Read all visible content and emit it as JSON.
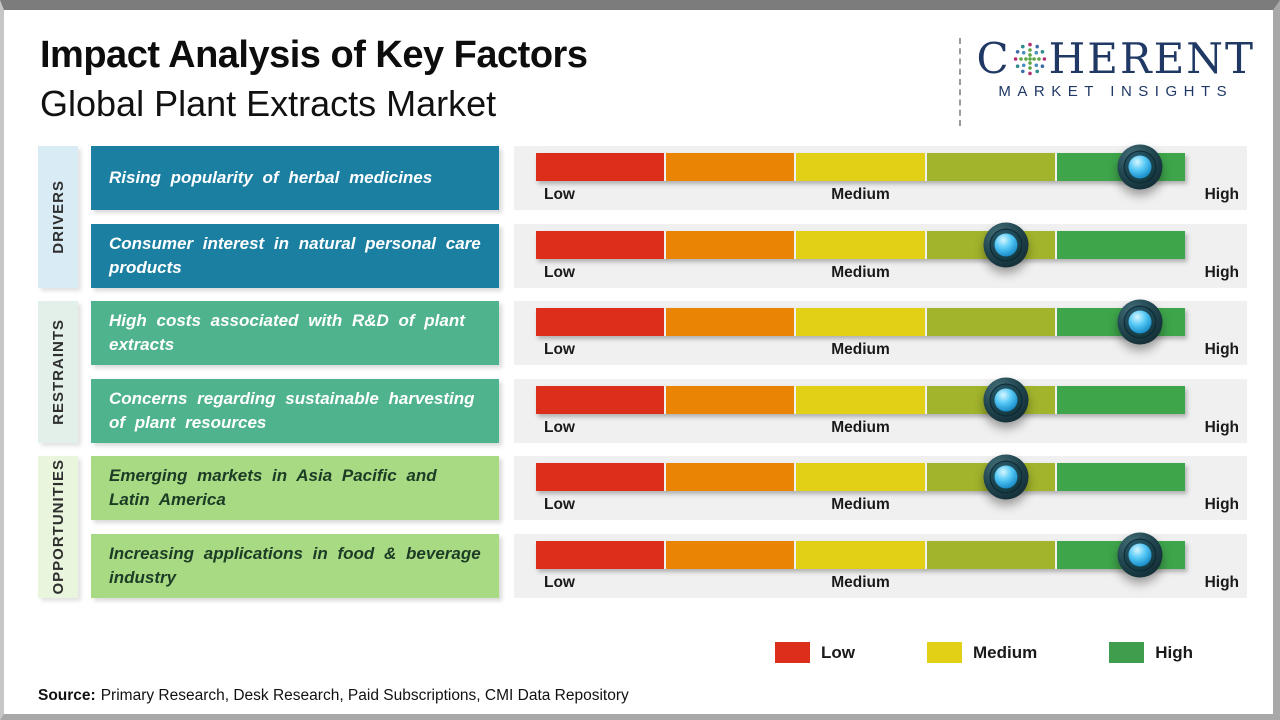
{
  "header": {
    "title": "Impact Analysis of Key Factors",
    "subtitle": "Global Plant Extracts Market"
  },
  "logo": {
    "word_start": "C",
    "word_end": "HERENT",
    "tagline": "MARKET INSIGHTS",
    "brand_color": "#1f3864"
  },
  "scale_labels": {
    "low": "Low",
    "medium": "Medium",
    "high": "High"
  },
  "bar_segment_colors": [
    "#dd2e1c",
    "#ea8405",
    "#e2d016",
    "#a2b42c",
    "#3ea54b"
  ],
  "groups": [
    {
      "label": "DRIVERS",
      "category_bg": "#d9ecf5",
      "factor_bg": "#1b7fa2",
      "factor_text_color": "#ffffff",
      "factors": [
        {
          "text": "Rising popularity of herbal medicines",
          "impact": "High",
          "marker_left": "93%"
        },
        {
          "text": "Consumer interest in natural personal care products",
          "impact": "Medium-High",
          "marker_left": "72.4%"
        }
      ]
    },
    {
      "label": "RESTRAINTS",
      "category_bg": "#e3efe9",
      "factor_bg": "#4fb38d",
      "factor_text_color": "#ffffff",
      "factors": [
        {
          "text": "High costs associated with R&D of plant extracts",
          "impact": "High",
          "marker_left": "93%"
        },
        {
          "text": "Concerns regarding sustainable harvesting of plant resources",
          "impact": "Medium-High",
          "marker_left": "72.4%"
        }
      ]
    },
    {
      "label": "OPPORTUNITIES",
      "category_bg": "#e9f5dd",
      "factor_bg": "#a8da83",
      "factor_text_color": "#1d3c26",
      "factors": [
        {
          "text": "Emerging markets in Asia Pacific and Latin America",
          "impact": "Medium-High",
          "marker_left": "72.4%"
        },
        {
          "text": "Increasing applications in food & beverage industry",
          "impact": "High",
          "marker_left": "93%"
        }
      ]
    }
  ],
  "legend": [
    {
      "label": "Low",
      "color": "#dd2e1c"
    },
    {
      "label": "Medium",
      "color": "#e2d016"
    },
    {
      "label": "High",
      "color": "#3f9e4d"
    }
  ],
  "source": {
    "label": "Source:",
    "text": "Primary Research, Desk Research, Paid Subscriptions, CMI Data Repository"
  },
  "chart_data": {
    "type": "bar",
    "title": "Impact Analysis of Key Factors",
    "subtitle": "Global Plant Extracts Market",
    "x_scale": [
      "Low",
      "Medium",
      "High"
    ],
    "legend_position": "bottom-right",
    "grid": false,
    "rows": [
      {
        "group": "Drivers",
        "factor": "Rising popularity of herbal medicines",
        "impact_level": "High",
        "scale_position_pct": 93
      },
      {
        "group": "Drivers",
        "factor": "Consumer interest in natural personal care products",
        "impact_level": "Medium-High",
        "scale_position_pct": 72
      },
      {
        "group": "Restraints",
        "factor": "High costs associated with R&D of plant extracts",
        "impact_level": "High",
        "scale_position_pct": 93
      },
      {
        "group": "Restraints",
        "factor": "Concerns regarding sustainable harvesting of plant resources",
        "impact_level": "Medium-High",
        "scale_position_pct": 72
      },
      {
        "group": "Opportunities",
        "factor": "Emerging markets in Asia Pacific and Latin America",
        "impact_level": "Medium-High",
        "scale_position_pct": 72
      },
      {
        "group": "Opportunities",
        "factor": "Increasing applications in food & beverage industry",
        "impact_level": "High",
        "scale_position_pct": 93
      }
    ]
  }
}
